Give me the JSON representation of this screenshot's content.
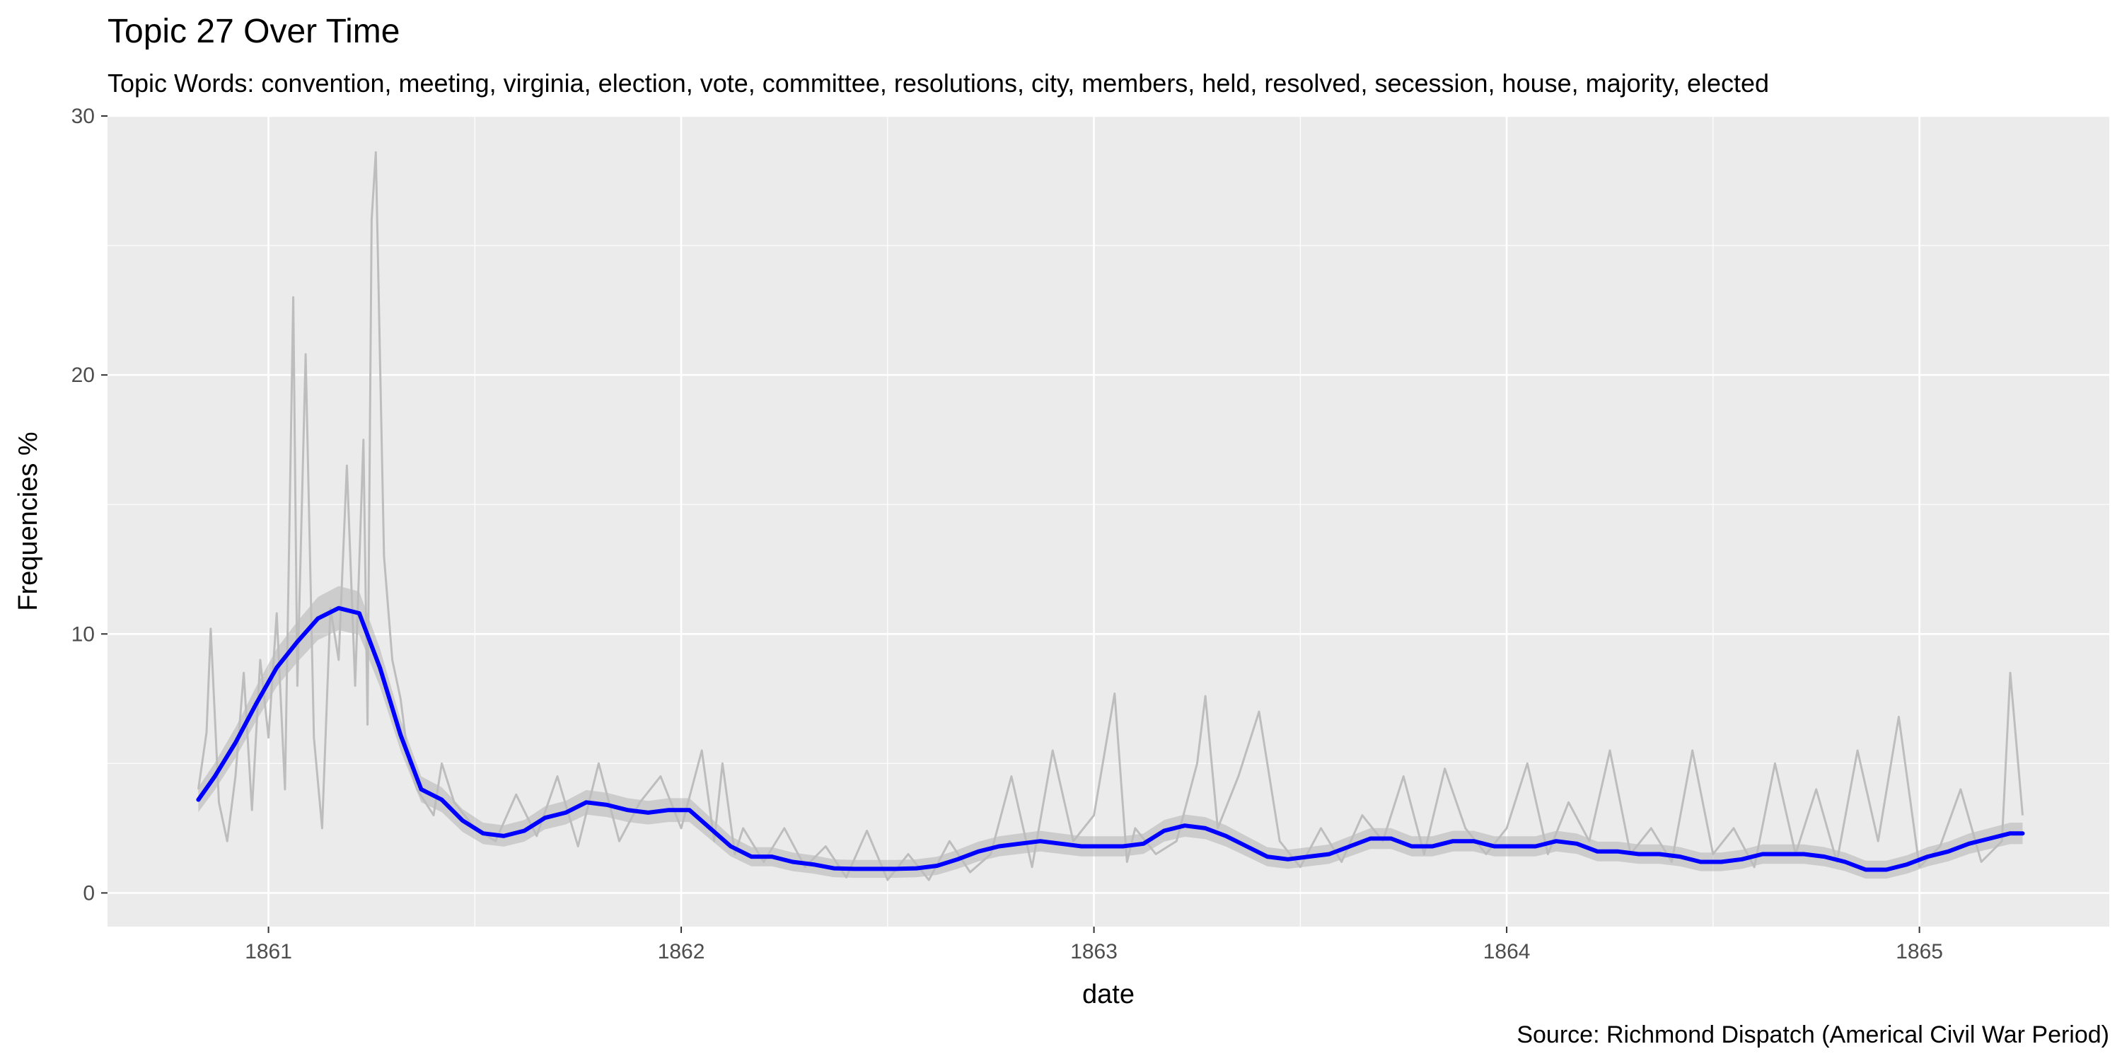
{
  "chart_data": {
    "type": "line",
    "title": "Topic 27 Over Time",
    "subtitle": "Topic Words: convention, meeting, virginia, election, vote, committee, resolutions, city, members, held, resolved, secession, house, majority, elected",
    "xlabel": "date",
    "ylabel": "Frequencies %",
    "caption": "Source: Richmond Dispatch (Americal Civil War Period)",
    "xlim": [
      1860.61,
      1865.46
    ],
    "ylim": [
      -1.3,
      30
    ],
    "x_ticks": [
      1861,
      1862,
      1863,
      1864,
      1865
    ],
    "x_tick_labels": [
      "1861",
      "1862",
      "1863",
      "1864",
      "1865"
    ],
    "y_ticks": [
      0,
      10,
      20,
      30
    ],
    "y_tick_labels": [
      "0",
      "10",
      "20",
      "30"
    ],
    "grid": true,
    "legend": "none",
    "colors": {
      "panel": "#ebebeb",
      "grid": "#ffffff",
      "raw_line": "#bdbdbd",
      "ribbon": "#a6a6a6",
      "smooth_line": "#0000ff"
    },
    "series": [
      {
        "kind": "raw",
        "x": [
          1860.83,
          1860.85,
          1860.86,
          1860.88,
          1860.9,
          1860.92,
          1860.94,
          1860.96,
          1860.98,
          1861.0,
          1861.02,
          1861.04,
          1861.06,
          1861.07,
          1861.09,
          1861.11,
          1861.13,
          1861.15,
          1861.17,
          1861.19,
          1861.21,
          1861.23,
          1861.24,
          1861.25,
          1861.26,
          1861.28,
          1861.3,
          1861.32,
          1861.34,
          1861.36,
          1861.38,
          1861.4,
          1861.42,
          1861.45,
          1861.5,
          1861.55,
          1861.6,
          1861.65,
          1861.7,
          1861.75,
          1861.8,
          1861.85,
          1861.9,
          1861.95,
          1862.0,
          1862.05,
          1862.08,
          1862.1,
          1862.13,
          1862.15,
          1862.2,
          1862.25,
          1862.3,
          1862.35,
          1862.4,
          1862.45,
          1862.5,
          1862.55,
          1862.6,
          1862.65,
          1862.7,
          1862.75,
          1862.8,
          1862.85,
          1862.9,
          1862.95,
          1863.0,
          1863.05,
          1863.08,
          1863.1,
          1863.15,
          1863.2,
          1863.25,
          1863.27,
          1863.3,
          1863.35,
          1863.4,
          1863.45,
          1863.5,
          1863.55,
          1863.6,
          1863.65,
          1863.7,
          1863.75,
          1863.8,
          1863.85,
          1863.9,
          1863.95,
          1864.0,
          1864.05,
          1864.1,
          1864.15,
          1864.2,
          1864.25,
          1864.3,
          1864.35,
          1864.4,
          1864.45,
          1864.5,
          1864.55,
          1864.6,
          1864.65,
          1864.7,
          1864.75,
          1864.8,
          1864.85,
          1864.9,
          1864.95,
          1865.0,
          1865.05,
          1865.1,
          1865.15,
          1865.2,
          1865.22,
          1865.25
        ],
        "y": [
          4.0,
          6.2,
          10.2,
          3.5,
          2.0,
          4.5,
          8.5,
          3.2,
          9.0,
          6.0,
          10.8,
          4.0,
          23.0,
          8.0,
          20.8,
          6.0,
          2.5,
          11.0,
          9.0,
          16.5,
          8.0,
          17.5,
          6.5,
          26.0,
          28.6,
          13.0,
          9.0,
          7.5,
          5.0,
          4.0,
          3.5,
          3.0,
          5.0,
          3.5,
          2.5,
          2.0,
          3.8,
          2.2,
          4.5,
          1.8,
          5.0,
          2.0,
          3.5,
          4.5,
          2.5,
          5.5,
          2.0,
          5.0,
          1.5,
          2.5,
          1.2,
          2.5,
          1.0,
          1.8,
          0.6,
          2.4,
          0.5,
          1.5,
          0.5,
          2.0,
          0.8,
          1.5,
          4.5,
          1.0,
          5.5,
          2.0,
          3.0,
          7.7,
          1.2,
          2.5,
          1.5,
          2.0,
          5.0,
          7.6,
          2.5,
          4.5,
          7.0,
          2.0,
          1.0,
          2.5,
          1.2,
          3.0,
          2.0,
          4.5,
          1.5,
          4.8,
          2.5,
          1.5,
          2.5,
          5.0,
          1.5,
          3.5,
          2.0,
          5.5,
          1.5,
          2.5,
          1.2,
          5.5,
          1.5,
          2.5,
          1.0,
          5.0,
          1.5,
          4.0,
          1.2,
          5.5,
          2.0,
          6.8,
          1.0,
          1.8,
          4.0,
          1.2,
          2.0,
          8.5,
          3.0
        ]
      },
      {
        "kind": "smooth",
        "x": [
          1860.83,
          1860.87,
          1860.92,
          1860.97,
          1861.02,
          1861.07,
          1861.12,
          1861.17,
          1861.22,
          1861.27,
          1861.32,
          1861.37,
          1861.42,
          1861.47,
          1861.52,
          1861.57,
          1861.62,
          1861.67,
          1861.72,
          1861.77,
          1861.82,
          1861.87,
          1861.92,
          1861.97,
          1862.02,
          1862.07,
          1862.12,
          1862.17,
          1862.22,
          1862.27,
          1862.32,
          1862.37,
          1862.42,
          1862.47,
          1862.52,
          1862.57,
          1862.62,
          1862.67,
          1862.72,
          1862.77,
          1862.82,
          1862.87,
          1862.92,
          1862.97,
          1863.02,
          1863.07,
          1863.12,
          1863.17,
          1863.22,
          1863.27,
          1863.32,
          1863.37,
          1863.42,
          1863.47,
          1863.52,
          1863.57,
          1863.62,
          1863.67,
          1863.72,
          1863.77,
          1863.82,
          1863.87,
          1863.92,
          1863.97,
          1864.02,
          1864.07,
          1864.12,
          1864.17,
          1864.22,
          1864.27,
          1864.32,
          1864.37,
          1864.42,
          1864.47,
          1864.52,
          1864.57,
          1864.62,
          1864.67,
          1864.72,
          1864.77,
          1864.82,
          1864.87,
          1864.92,
          1864.97,
          1865.02,
          1865.07,
          1865.12,
          1865.17,
          1865.22,
          1865.25
        ],
        "y": [
          3.6,
          4.5,
          5.8,
          7.3,
          8.7,
          9.7,
          10.6,
          11.0,
          10.8,
          8.7,
          6.1,
          4.0,
          3.6,
          2.8,
          2.3,
          2.2,
          2.4,
          2.9,
          3.1,
          3.5,
          3.4,
          3.2,
          3.1,
          3.2,
          3.2,
          2.5,
          1.8,
          1.4,
          1.4,
          1.2,
          1.1,
          0.95,
          0.93,
          0.93,
          0.93,
          0.95,
          1.05,
          1.3,
          1.6,
          1.8,
          1.9,
          2.0,
          1.9,
          1.8,
          1.8,
          1.8,
          1.9,
          2.4,
          2.6,
          2.5,
          2.2,
          1.8,
          1.4,
          1.3,
          1.4,
          1.5,
          1.8,
          2.1,
          2.1,
          1.8,
          1.8,
          2.0,
          2.0,
          1.8,
          1.8,
          1.8,
          2.0,
          1.9,
          1.6,
          1.6,
          1.5,
          1.5,
          1.4,
          1.2,
          1.2,
          1.3,
          1.5,
          1.5,
          1.5,
          1.4,
          1.2,
          0.9,
          0.9,
          1.1,
          1.4,
          1.6,
          1.9,
          2.1,
          2.3,
          2.3
        ]
      }
    ]
  }
}
